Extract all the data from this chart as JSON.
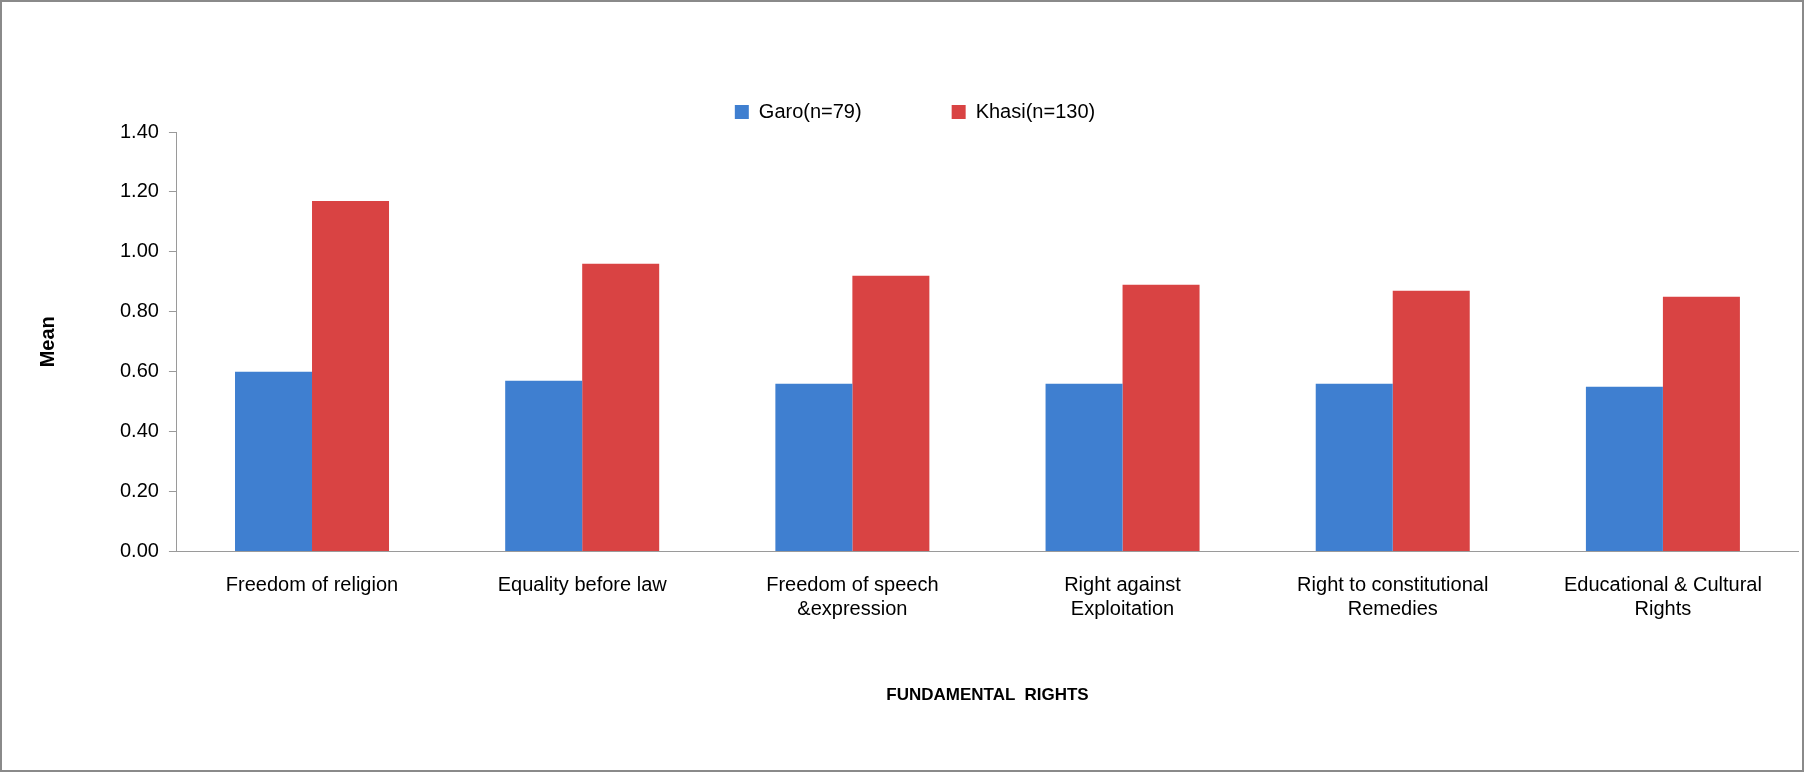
{
  "chart_data": {
    "type": "bar",
    "xlabel": "FUNDAMENTAL  RIGHTS",
    "ylabel": "Mean",
    "categories": [
      "Freedom of religion",
      "Equality before law",
      "Freedom of speech &expression",
      "Right against Exploitation",
      "Right to constitutional Remedies",
      "Educational & Cultural Rights"
    ],
    "series": [
      {
        "name": "Garo(n=79)",
        "color": "#3f7fd0",
        "values": [
          0.6,
          0.57,
          0.56,
          0.56,
          0.56,
          0.55
        ]
      },
      {
        "name": "Khasi(n=130)",
        "color": "#d94343",
        "values": [
          1.17,
          0.96,
          0.92,
          0.89,
          0.87,
          0.85
        ]
      }
    ],
    "ylim": [
      0,
      1.4
    ],
    "yticks": [
      {
        "value": 0,
        "label": "0.00"
      },
      {
        "value": 0.2,
        "label": "0.20"
      },
      {
        "value": 0.4,
        "label": "0.40"
      },
      {
        "value": 0.6,
        "label": "0.60"
      },
      {
        "value": 0.8,
        "label": "0.80"
      },
      {
        "value": 1.0,
        "label": "1.00"
      },
      {
        "value": 1.2,
        "label": "1.20"
      },
      {
        "value": 1.4,
        "label": "1.40"
      }
    ],
    "grid": false,
    "legend": "top"
  }
}
